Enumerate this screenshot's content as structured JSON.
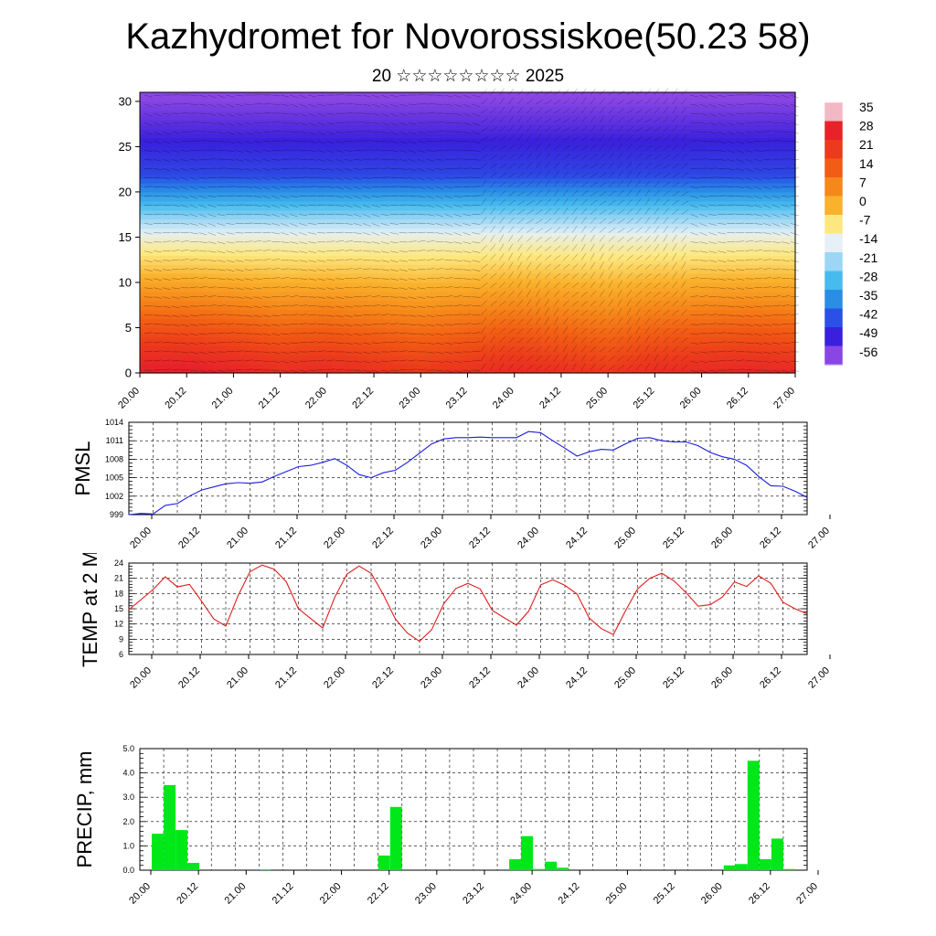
{
  "page": {
    "title": "Kazhydromet for Novorossiskoe(50.23 58)",
    "subtitle": "20 ☆☆☆☆☆☆☆☆ 2025"
  },
  "chart_data": [
    {
      "id": "temp-cross-section",
      "type": "heatmap",
      "title": "",
      "ylabel": "",
      "x_ticks": [
        "20.00",
        "20.12",
        "21.00",
        "21.12",
        "22.00",
        "22.12",
        "23.00",
        "23.12",
        "24.00",
        "24.12",
        "25.00",
        "25.12",
        "26.00",
        "26.12",
        "27.00"
      ],
      "y_ticks": [
        0,
        5,
        10,
        15,
        20,
        25,
        30
      ],
      "ylim": [
        0,
        31
      ],
      "colorbar_labels": [
        "35",
        "28",
        "21",
        "14",
        "7",
        "0",
        "-7",
        "-14",
        "-21",
        "-28",
        "-35",
        "-42",
        "-49",
        "-56"
      ],
      "colorbar_colors": [
        "#f2b8c4",
        "#e8222a",
        "#ec3a1c",
        "#f25c14",
        "#f6881a",
        "#fab22c",
        "#fde880",
        "#e6f0f6",
        "#9cd6f4",
        "#46bcee",
        "#2a8ee6",
        "#2a50e6",
        "#3a20dc",
        "#8a46e4"
      ],
      "profile_base_temps": [
        30,
        30,
        28,
        25,
        26,
        24,
        22,
        24,
        26,
        24,
        22,
        25,
        26,
        27,
        26
      ]
    },
    {
      "id": "pmsl",
      "type": "line",
      "ylabel": "PMSL",
      "x_ticks": [
        "20.00",
        "20.12",
        "21.00",
        "21.12",
        "22.00",
        "22.12",
        "23.00",
        "23.12",
        "24.00",
        "24.12",
        "25.00",
        "25.12",
        "26.00",
        "26.12",
        "27.00"
      ],
      "y_ticks": [
        999,
        1002,
        1005,
        1008,
        1011,
        1014
      ],
      "ylim": [
        999,
        1014
      ],
      "color": "#1c1ce0",
      "x": [
        0,
        3,
        6,
        9,
        12,
        15,
        18,
        21,
        24,
        27,
        30,
        33,
        36,
        39,
        42,
        45,
        48,
        51,
        54,
        57,
        60,
        63,
        66,
        69,
        72,
        75,
        78,
        81,
        84,
        87,
        90,
        93,
        96,
        99,
        102,
        105,
        108,
        111,
        114,
        117,
        120,
        123,
        126,
        129,
        132,
        135,
        138,
        141,
        144,
        147,
        150,
        153,
        156,
        159,
        162,
        165,
        168
      ],
      "values": [
        999.0,
        999.2,
        999.1,
        1000.5,
        1000.8,
        1002.0,
        1003.0,
        1003.5,
        1004.0,
        1004.2,
        1004.1,
        1004.3,
        1005.2,
        1006.0,
        1006.8,
        1007.0,
        1007.5,
        1008.1,
        1007.0,
        1005.5,
        1005.0,
        1005.8,
        1006.2,
        1007.5,
        1009.0,
        1010.5,
        1011.3,
        1011.5,
        1011.5,
        1011.6,
        1011.5,
        1011.5,
        1011.5,
        1012.5,
        1012.3,
        1011.0,
        1009.8,
        1008.5,
        1009.2,
        1009.6,
        1009.5,
        1010.5,
        1011.4,
        1011.5,
        1011.0,
        1010.8,
        1010.8,
        1010.2,
        1009.1,
        1008.4,
        1008.0,
        1007.0,
        1005.2,
        1003.7,
        1003.6,
        1002.8,
        1001.8
      ]
    },
    {
      "id": "temp-2m",
      "type": "line",
      "ylabel": "TEMP at 2 M",
      "x_ticks": [
        "20.00",
        "20.12",
        "21.00",
        "21.12",
        "22.00",
        "22.12",
        "23.00",
        "23.12",
        "24.00",
        "24.12",
        "25.00",
        "25.12",
        "26.00",
        "26.12",
        "27.00"
      ],
      "y_ticks": [
        6,
        9,
        12,
        15,
        18,
        21,
        24
      ],
      "ylim": [
        6,
        24
      ],
      "color": "#e01c1c",
      "x": [
        0,
        3,
        6,
        9,
        12,
        15,
        18,
        21,
        24,
        27,
        30,
        33,
        36,
        39,
        42,
        45,
        48,
        51,
        54,
        57,
        60,
        63,
        66,
        69,
        72,
        75,
        78,
        81,
        84,
        87,
        90,
        93,
        96,
        99,
        102,
        105,
        108,
        111,
        114,
        117,
        120,
        123,
        126,
        129,
        132,
        135,
        138,
        141,
        144,
        147,
        150,
        153,
        156,
        159,
        162,
        165,
        168
      ],
      "values": [
        14.8,
        16.8,
        18.8,
        21.3,
        19.3,
        19.8,
        16.5,
        13.0,
        11.6,
        17.5,
        22.3,
        23.6,
        22.8,
        20.3,
        15.0,
        13.1,
        11.2,
        17.3,
        21.8,
        23.4,
        22.0,
        17.8,
        13.0,
        10.2,
        8.6,
        10.9,
        16.0,
        19.0,
        20.0,
        18.9,
        14.7,
        13.2,
        11.8,
        14.5,
        19.7,
        20.7,
        19.6,
        17.9,
        13.2,
        11.1,
        9.9,
        14.6,
        18.9,
        21.0,
        22.0,
        20.5,
        18.2,
        15.5,
        15.8,
        17.3,
        20.3,
        19.4,
        21.5,
        20.0,
        16.3,
        15.0,
        14.0
      ]
    },
    {
      "id": "precip",
      "type": "bar",
      "ylabel": "PRECIP, mm",
      "x_ticks": [
        "20.00",
        "20.12",
        "21.00",
        "21.12",
        "22.00",
        "22.12",
        "23.00",
        "23.12",
        "24.00",
        "24.12",
        "25.00",
        "25.12",
        "26.00",
        "26.12",
        "27.00"
      ],
      "y_ticks": [
        "0.0",
        "1.0",
        "2.0",
        "3.0",
        "4.0",
        "5.0"
      ],
      "ylim": [
        0,
        5
      ],
      "color": "#00e818",
      "bar_width_hours": 3,
      "x": [
        3,
        6,
        9,
        12,
        30,
        60,
        63,
        93,
        96,
        99,
        102,
        105,
        147,
        150,
        153,
        156,
        159,
        162
      ],
      "values": [
        1.5,
        3.5,
        1.65,
        0.3,
        0.03,
        0.6,
        2.6,
        0.45,
        1.4,
        0.05,
        0.35,
        0.1,
        0.2,
        0.25,
        4.5,
        0.45,
        1.3,
        0.05
      ]
    }
  ]
}
